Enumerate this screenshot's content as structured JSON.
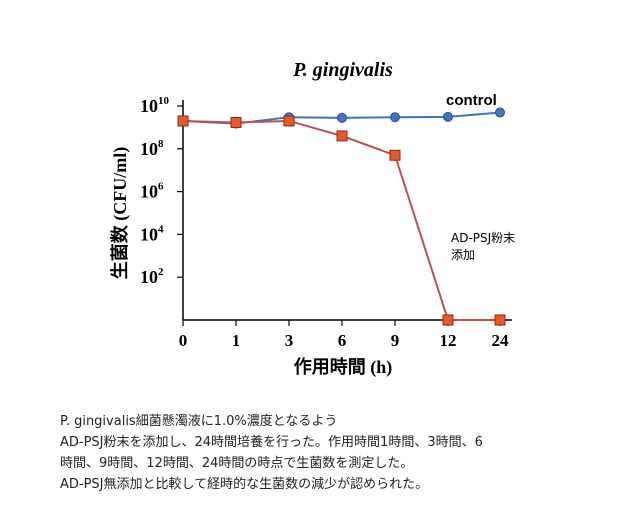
{
  "chart_data": {
    "type": "line",
    "title": "P. gingivalis",
    "xlabel": "作用時間 (h)",
    "ylabel": "生菌数 (CFU/ml)",
    "categories": [
      "0",
      "1",
      "3",
      "6",
      "9",
      "12",
      "24"
    ],
    "y_scale": "log",
    "ylim": [
      1,
      10000000000
    ],
    "yticks": [
      {
        "base": "10",
        "exp": "10"
      },
      {
        "base": "10",
        "exp": "8"
      },
      {
        "base": "10",
        "exp": "6"
      },
      {
        "base": "10",
        "exp": "4"
      },
      {
        "base": "10",
        "exp": "2"
      }
    ],
    "series": [
      {
        "name": "control",
        "color": "#4472c4",
        "marker": "circle",
        "values": [
          2000000000,
          1500000000,
          3000000000,
          2800000000,
          3000000000,
          3100000000,
          5000000000
        ]
      },
      {
        "name": "AD-PSJ粉末添加",
        "color": "#c0504d",
        "marker_fill": "#e8582a",
        "marker": "square",
        "values": [
          2000000000,
          1700000000,
          2000000000,
          400000000,
          50000000,
          1,
          1
        ]
      }
    ],
    "annotations": {
      "control_label": "control",
      "psj_label_line1": "AD-PSJ粉末",
      "psj_label_line2": "添加"
    },
    "grid": false,
    "legend": "none"
  },
  "caption": {
    "lines": [
      "P. gingivalis細菌懸濁液に1.0%濃度となるよう",
      "AD-PSJ粉末を添加し、24時間培養を行った。作用時間1時間、3時間、6",
      "時間、9時間、12時間、24時間の時点で生菌数を測定した。",
      "AD-PSJ無添加と比較して経時的な生菌数の減少が認められた。"
    ]
  }
}
